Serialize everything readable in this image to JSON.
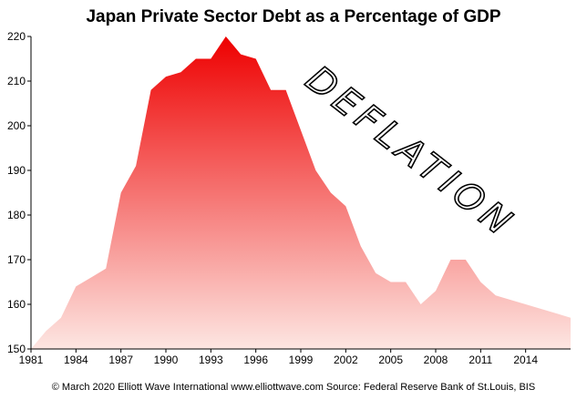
{
  "chart_data": {
    "type": "area",
    "title": "Japan Private Sector Debt as a Percentage of GDP",
    "xlabel": "",
    "ylabel": "",
    "xlim": [
      1981,
      2017
    ],
    "ylim": [
      150,
      220
    ],
    "yticks": [
      150,
      160,
      170,
      180,
      190,
      200,
      210,
      220
    ],
    "xticks": [
      1981,
      1984,
      1987,
      1990,
      1993,
      1996,
      1999,
      2002,
      2005,
      2008,
      2011,
      2014
    ],
    "grid": false,
    "legend": "none",
    "fill_gradient": [
      "#ee0000",
      "#fde6e2"
    ],
    "x": [
      1981,
      1982,
      1983,
      1984,
      1985,
      1986,
      1987,
      1988,
      1989,
      1990,
      1991,
      1992,
      1993,
      1994,
      1995,
      1996,
      1997,
      1998,
      1999,
      2000,
      2001,
      2002,
      2003,
      2004,
      2005,
      2006,
      2007,
      2008,
      2009,
      2010,
      2011,
      2012,
      2013,
      2014,
      2015,
      2016,
      2017
    ],
    "values": [
      150,
      154,
      157,
      164,
      166,
      168,
      185,
      191,
      208,
      211,
      212,
      215,
      215,
      220,
      216,
      215,
      208,
      208,
      199,
      190,
      185,
      182,
      173,
      167,
      165,
      165,
      160,
      163,
      170,
      170,
      165,
      162,
      161,
      160,
      159,
      158,
      157
    ],
    "annotation": "DEFLATION",
    "footer": "© March 2020   Elliott Wave International   www.elliottwave.com   Source: Federal Reserve Bank of St.Louis, BIS"
  }
}
